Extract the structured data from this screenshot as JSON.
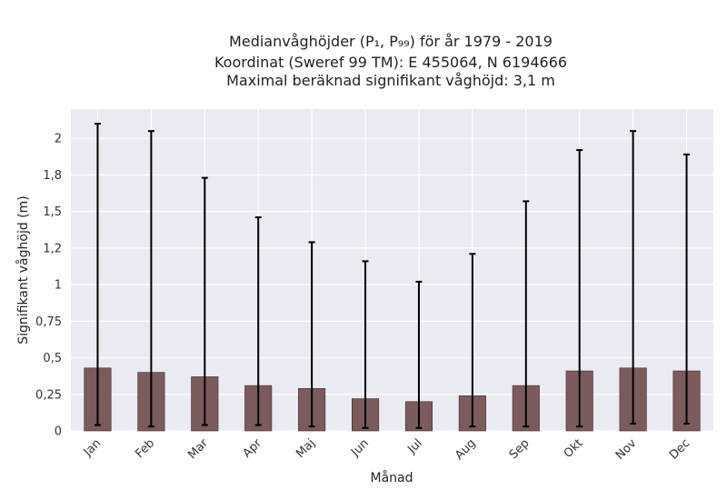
{
  "chart_data": {
    "type": "bar",
    "title_lines": [
      "Medianvåghöjder (P₁, P₉₉) för år 1979 - 2019",
      "Koordinat (Sweref 99 TM): E 455064, N 6194666",
      "Maximal beräknad signifikant våghöjd: 3,1 m"
    ],
    "xlabel": "Månad",
    "ylabel": "Signifikant våghöjd (m)",
    "categories": [
      "Jan",
      "Feb",
      "Mar",
      "Apr",
      "Maj",
      "Jun",
      "Jul",
      "Aug",
      "Sep",
      "Okt",
      "Nov",
      "Dec"
    ],
    "values": [
      0.43,
      0.4,
      0.37,
      0.31,
      0.29,
      0.22,
      0.2,
      0.24,
      0.31,
      0.41,
      0.43,
      0.41
    ],
    "p1": [
      0.04,
      0.03,
      0.04,
      0.04,
      0.03,
      0.02,
      0.02,
      0.03,
      0.03,
      0.03,
      0.05,
      0.05
    ],
    "p99": [
      2.1,
      2.05,
      1.73,
      1.46,
      1.29,
      1.16,
      1.02,
      1.21,
      1.57,
      1.92,
      2.05,
      1.89
    ],
    "ylim": [
      0,
      2.2
    ],
    "yticks": [
      0,
      0.25,
      0.5,
      0.75,
      1,
      1.25,
      1.5,
      1.75,
      2
    ],
    "ytick_labels": [
      "0",
      "0,25",
      "0,5",
      "0,75",
      "1",
      "1,2",
      "1,5",
      "1,8",
      "2"
    ],
    "grid": true,
    "colors": {
      "bar": "#7b5b5b",
      "bar_edge": "#3a2a2a",
      "errorbar": "#000000",
      "plot_bg": "#eaeaf2",
      "grid": "#ffffff"
    }
  }
}
